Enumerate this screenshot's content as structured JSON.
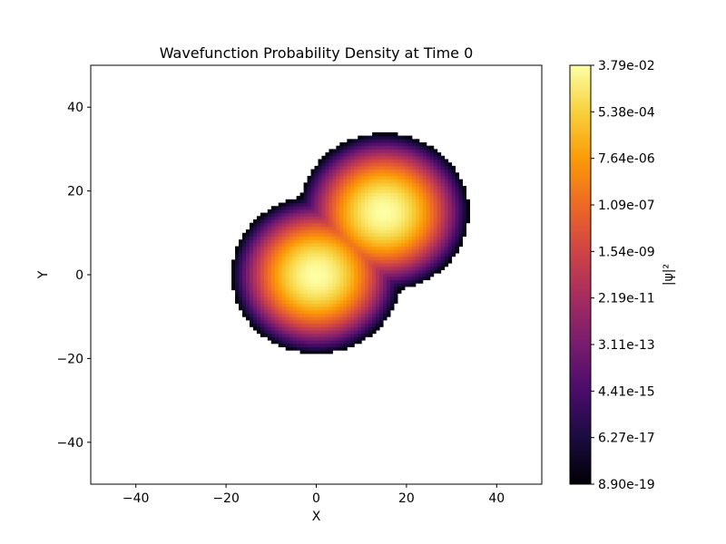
{
  "chart_data": {
    "type": "heatmap",
    "title": "Wavefunction Probability Density at Time 0",
    "xlabel": "X",
    "ylabel": "Y",
    "xlim": [
      -50,
      50
    ],
    "ylim": [
      -50,
      50
    ],
    "x_ticks": [
      -40,
      -20,
      0,
      20,
      40
    ],
    "y_ticks": [
      -40,
      -20,
      0,
      20,
      40
    ],
    "x_tick_labels": [
      "−40",
      "−20",
      "0",
      "20",
      "40"
    ],
    "y_tick_labels": [
      "−40",
      "−20",
      "0",
      "20",
      "40"
    ],
    "grid": false,
    "colormap": "inferno",
    "color_scale": "log",
    "colorbar": {
      "label": "|ψ|²",
      "tick_labels": [
        "8.90e-19",
        "6.27e-17",
        "4.41e-15",
        "3.11e-13",
        "2.19e-11",
        "1.54e-09",
        "1.09e-07",
        "7.64e-06",
        "5.38e-04",
        "3.79e-02"
      ],
      "tick_values": [
        8.9e-19,
        6.27e-17,
        4.41e-15,
        3.11e-13,
        2.19e-11,
        1.54e-09,
        1.09e-07,
        7.64e-06,
        0.000538,
        0.0379
      ]
    },
    "field": {
      "description": "sum of two Gaussian wavepackets, values below 8.90e-19 not drawn",
      "packets": [
        {
          "center_x": 0,
          "center_y": 0,
          "peak": 0.25,
          "sigma": 2.1
        },
        {
          "center_x": 15,
          "center_y": 15,
          "peak": 0.25,
          "sigma": 2.1
        }
      ],
      "min_shown": 8.9e-19,
      "max_shown": 0.25
    }
  },
  "colors": {
    "background": "#ffffff",
    "axes_edge": "#000000",
    "inferno_stops": [
      "#000004",
      "#1b0c41",
      "#4a0c6b",
      "#781c6d",
      "#a52c60",
      "#cf4446",
      "#ed6925",
      "#fb9b06",
      "#f7d13d",
      "#fcffa4"
    ]
  }
}
